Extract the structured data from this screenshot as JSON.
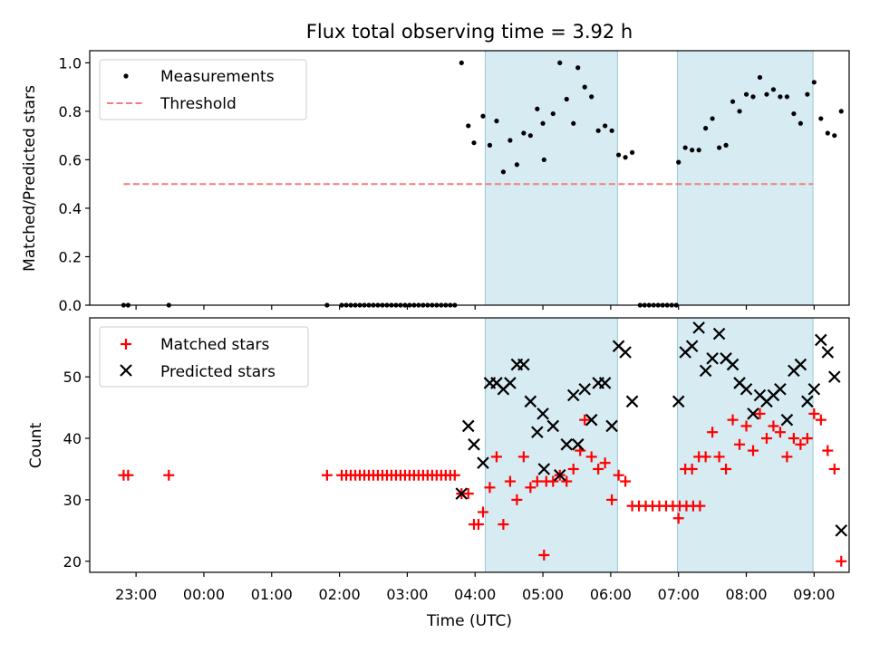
{
  "chart_data": [
    {
      "type": "scatter",
      "title": "Flux total observing time = 3.92 h",
      "ylabel": "Matched/Predicted stars",
      "xlabel": "",
      "ylim": [
        0,
        1.05
      ],
      "xlim": [
        "22:19",
        "09:31"
      ],
      "yticks": [
        "0.0",
        "0.2",
        "0.4",
        "0.6",
        "0.8",
        "1.0"
      ],
      "legend_position": "upper-left",
      "shaded_intervals": [
        [
          "04:09",
          "06:06"
        ],
        [
          "06:59",
          "08:59"
        ]
      ],
      "threshold": {
        "name": "Threshold",
        "value": 0.5,
        "x_range": [
          "22:49",
          "08:59"
        ],
        "color": "#f47c7c"
      },
      "series": [
        {
          "name": "Measurements",
          "color": "#000000",
          "points": [
            [
              "22:49",
              0
            ],
            [
              "22:53",
              0
            ],
            [
              "23:29",
              0
            ],
            [
              "01:49",
              0
            ],
            [
              "02:02",
              0
            ],
            [
              "02:06",
              0
            ],
            [
              "02:10",
              0
            ],
            [
              "02:14",
              0
            ],
            [
              "02:18",
              0
            ],
            [
              "02:22",
              0
            ],
            [
              "02:26",
              0
            ],
            [
              "02:30",
              0
            ],
            [
              "02:34",
              0
            ],
            [
              "02:38",
              0
            ],
            [
              "02:42",
              0
            ],
            [
              "02:46",
              0
            ],
            [
              "02:50",
              0
            ],
            [
              "02:54",
              0
            ],
            [
              "02:58",
              0
            ],
            [
              "03:02",
              0
            ],
            [
              "03:06",
              0
            ],
            [
              "03:10",
              0
            ],
            [
              "03:14",
              0
            ],
            [
              "03:18",
              0
            ],
            [
              "03:22",
              0
            ],
            [
              "03:26",
              0
            ],
            [
              "03:30",
              0
            ],
            [
              "03:34",
              0
            ],
            [
              "03:38",
              0
            ],
            [
              "03:42",
              0
            ],
            [
              "03:48",
              1.0
            ],
            [
              "03:54",
              0.74
            ],
            [
              "03:59",
              0.67
            ],
            [
              "04:07",
              0.78
            ],
            [
              "04:13",
              0.66
            ],
            [
              "04:19",
              0.76
            ],
            [
              "04:25",
              0.55
            ],
            [
              "04:31",
              0.68
            ],
            [
              "04:37",
              0.58
            ],
            [
              "04:43",
              0.71
            ],
            [
              "04:49",
              0.7
            ],
            [
              "04:55",
              0.81
            ],
            [
              "05:00",
              0.75
            ],
            [
              "05:01",
              0.6
            ],
            [
              "05:09",
              0.79
            ],
            [
              "05:15",
              1.0
            ],
            [
              "05:21",
              0.85
            ],
            [
              "05:27",
              0.75
            ],
            [
              "05:31",
              0.98
            ],
            [
              "05:37",
              0.9
            ],
            [
              "05:43",
              0.86
            ],
            [
              "05:49",
              0.72
            ],
            [
              "05:55",
              0.74
            ],
            [
              "06:01",
              0.72
            ],
            [
              "06:07",
              0.62
            ],
            [
              "06:13",
              0.61
            ],
            [
              "06:19",
              0.63
            ],
            [
              "06:26",
              0
            ],
            [
              "06:30",
              0
            ],
            [
              "06:34",
              0
            ],
            [
              "06:38",
              0
            ],
            [
              "06:42",
              0
            ],
            [
              "06:46",
              0
            ],
            [
              "06:50",
              0
            ],
            [
              "06:54",
              0
            ],
            [
              "06:58",
              0
            ],
            [
              "07:00",
              0.59
            ],
            [
              "07:06",
              0.65
            ],
            [
              "07:12",
              0.64
            ],
            [
              "07:18",
              0.64
            ],
            [
              "07:24",
              0.73
            ],
            [
              "07:30",
              0.77
            ],
            [
              "07:36",
              0.65
            ],
            [
              "07:42",
              0.66
            ],
            [
              "07:48",
              0.84
            ],
            [
              "07:54",
              0.8
            ],
            [
              "08:00",
              0.87
            ],
            [
              "08:06",
              0.86
            ],
            [
              "08:12",
              0.94
            ],
            [
              "08:18",
              0.87
            ],
            [
              "08:24",
              0.89
            ],
            [
              "08:30",
              0.86
            ],
            [
              "08:36",
              0.86
            ],
            [
              "08:42",
              0.79
            ],
            [
              "08:48",
              0.75
            ],
            [
              "08:54",
              0.87
            ],
            [
              "09:00",
              0.92
            ],
            [
              "09:06",
              0.77
            ],
            [
              "09:12",
              0.71
            ],
            [
              "09:18",
              0.7
            ],
            [
              "09:24",
              0.8
            ]
          ]
        }
      ]
    },
    {
      "type": "scatter",
      "title": "",
      "ylabel": "Count",
      "xlabel": "Time (UTC)",
      "ylim": [
        18.2,
        59.6
      ],
      "xlim": [
        "22:19",
        "09:31"
      ],
      "yticks": [
        "20",
        "30",
        "40",
        "50"
      ],
      "xticks": [
        "23:00",
        "00:00",
        "01:00",
        "02:00",
        "03:00",
        "04:00",
        "05:00",
        "06:00",
        "07:00",
        "08:00",
        "09:00"
      ],
      "legend_position": "upper-left",
      "shaded_intervals": [
        [
          "04:09",
          "06:06"
        ],
        [
          "06:59",
          "08:59"
        ]
      ],
      "series": [
        {
          "name": "Matched stars",
          "marker": "plus",
          "color": "#ff0000",
          "points": [
            [
              "22:49",
              34
            ],
            [
              "22:53",
              34
            ],
            [
              "23:29",
              34
            ],
            [
              "01:49",
              34
            ],
            [
              "02:02",
              34
            ],
            [
              "02:06",
              34
            ],
            [
              "02:10",
              34
            ],
            [
              "02:14",
              34
            ],
            [
              "02:18",
              34
            ],
            [
              "02:22",
              34
            ],
            [
              "02:26",
              34
            ],
            [
              "02:30",
              34
            ],
            [
              "02:34",
              34
            ],
            [
              "02:38",
              34
            ],
            [
              "02:42",
              34
            ],
            [
              "02:46",
              34
            ],
            [
              "02:50",
              34
            ],
            [
              "02:54",
              34
            ],
            [
              "02:58",
              34
            ],
            [
              "03:02",
              34
            ],
            [
              "03:06",
              34
            ],
            [
              "03:10",
              34
            ],
            [
              "03:14",
              34
            ],
            [
              "03:18",
              34
            ],
            [
              "03:22",
              34
            ],
            [
              "03:26",
              34
            ],
            [
              "03:30",
              34
            ],
            [
              "03:34",
              34
            ],
            [
              "03:38",
              34
            ],
            [
              "03:42",
              34
            ],
            [
              "03:48",
              31
            ],
            [
              "03:54",
              31
            ],
            [
              "03:59",
              26
            ],
            [
              "04:03",
              26
            ],
            [
              "04:07",
              28
            ],
            [
              "04:13",
              32
            ],
            [
              "04:19",
              37
            ],
            [
              "04:25",
              26
            ],
            [
              "04:31",
              33
            ],
            [
              "04:37",
              30
            ],
            [
              "04:43",
              37
            ],
            [
              "04:49",
              32
            ],
            [
              "04:55",
              33
            ],
            [
              "05:01",
              21
            ],
            [
              "05:03",
              33
            ],
            [
              "05:09",
              33
            ],
            [
              "05:15",
              34
            ],
            [
              "05:21",
              33
            ],
            [
              "05:27",
              35
            ],
            [
              "05:33",
              38
            ],
            [
              "05:37",
              43
            ],
            [
              "05:43",
              37
            ],
            [
              "05:49",
              35
            ],
            [
              "05:55",
              36
            ],
            [
              "06:01",
              30
            ],
            [
              "06:07",
              34
            ],
            [
              "06:13",
              33
            ],
            [
              "06:19",
              29
            ],
            [
              "06:25",
              29
            ],
            [
              "06:31",
              29
            ],
            [
              "06:37",
              29
            ],
            [
              "06:43",
              29
            ],
            [
              "06:49",
              29
            ],
            [
              "06:55",
              29
            ],
            [
              "07:01",
              29
            ],
            [
              "07:07",
              29
            ],
            [
              "07:13",
              29
            ],
            [
              "07:19",
              29
            ],
            [
              "07:00",
              27
            ],
            [
              "07:06",
              35
            ],
            [
              "07:12",
              35
            ],
            [
              "07:18",
              37
            ],
            [
              "07:24",
              37
            ],
            [
              "07:30",
              41
            ],
            [
              "07:36",
              37
            ],
            [
              "07:42",
              35
            ],
            [
              "07:48",
              43
            ],
            [
              "07:54",
              39
            ],
            [
              "08:00",
              42
            ],
            [
              "08:06",
              38
            ],
            [
              "08:12",
              44
            ],
            [
              "08:18",
              40
            ],
            [
              "08:24",
              42
            ],
            [
              "08:30",
              41
            ],
            [
              "08:36",
              37
            ],
            [
              "08:42",
              40
            ],
            [
              "08:48",
              39
            ],
            [
              "08:54",
              40
            ],
            [
              "09:00",
              44
            ],
            [
              "09:06",
              43
            ],
            [
              "09:12",
              38
            ],
            [
              "09:18",
              35
            ],
            [
              "09:24",
              20
            ]
          ]
        },
        {
          "name": "Predicted stars",
          "marker": "x",
          "color": "#000000",
          "points": [
            [
              "03:48",
              31
            ],
            [
              "03:54",
              42
            ],
            [
              "03:59",
              39
            ],
            [
              "04:07",
              36
            ],
            [
              "04:13",
              49
            ],
            [
              "04:19",
              49
            ],
            [
              "04:25",
              48
            ],
            [
              "04:31",
              49
            ],
            [
              "04:37",
              52
            ],
            [
              "04:43",
              52
            ],
            [
              "04:49",
              46
            ],
            [
              "04:55",
              41
            ],
            [
              "05:00",
              44
            ],
            [
              "05:01",
              35
            ],
            [
              "05:09",
              42
            ],
            [
              "05:15",
              34
            ],
            [
              "05:21",
              39
            ],
            [
              "05:27",
              47
            ],
            [
              "05:31",
              39
            ],
            [
              "05:37",
              48
            ],
            [
              "05:43",
              43
            ],
            [
              "05:49",
              49
            ],
            [
              "05:55",
              49
            ],
            [
              "06:01",
              42
            ],
            [
              "06:07",
              55
            ],
            [
              "06:13",
              54
            ],
            [
              "06:19",
              46
            ],
            [
              "07:00",
              46
            ],
            [
              "07:06",
              54
            ],
            [
              "07:12",
              55
            ],
            [
              "07:18",
              58
            ],
            [
              "07:24",
              51
            ],
            [
              "07:30",
              53
            ],
            [
              "07:36",
              57
            ],
            [
              "07:42",
              53
            ],
            [
              "07:48",
              52
            ],
            [
              "07:54",
              49
            ],
            [
              "08:00",
              48
            ],
            [
              "08:06",
              44
            ],
            [
              "08:12",
              47
            ],
            [
              "08:18",
              46
            ],
            [
              "08:24",
              47
            ],
            [
              "08:30",
              48
            ],
            [
              "08:36",
              43
            ],
            [
              "08:42",
              51
            ],
            [
              "08:48",
              52
            ],
            [
              "08:54",
              46
            ],
            [
              "09:00",
              48
            ],
            [
              "09:06",
              56
            ],
            [
              "09:12",
              54
            ],
            [
              "09:18",
              50
            ],
            [
              "09:24",
              25
            ]
          ]
        }
      ]
    }
  ]
}
